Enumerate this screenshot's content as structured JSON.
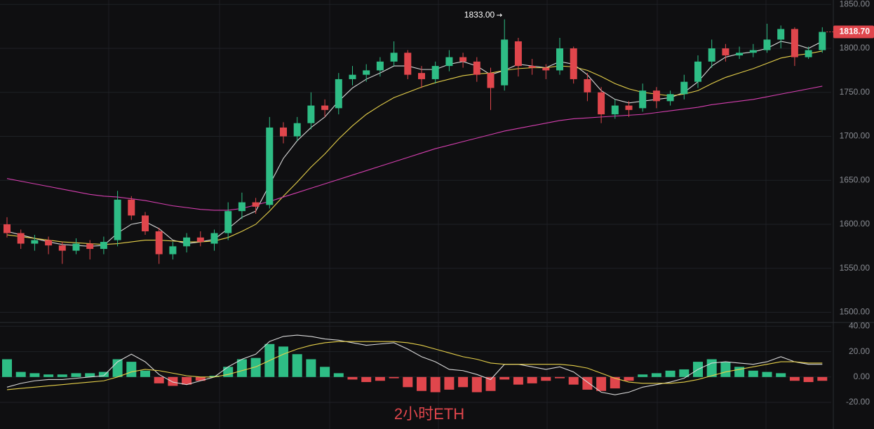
{
  "chart_data": [
    {
      "type": "candlestick",
      "title": "2小时ETH",
      "open": [
        1600,
        1590,
        1578,
        1582,
        1576,
        1570,
        1578,
        1572,
        1582,
        1628,
        1610,
        1592,
        1566,
        1575,
        1585,
        1578,
        1590,
        1615,
        1625,
        1622,
        1710,
        1700,
        1715,
        1735,
        1732,
        1765,
        1770,
        1775,
        1785,
        1795,
        1772,
        1765,
        1780,
        1790,
        1785,
        1772,
        1758,
        1808,
        1780,
        1778,
        1775,
        1800,
        1765,
        1750,
        1725,
        1735,
        1732,
        1752,
        1740,
        1748,
        1762,
        1785,
        1800,
        1792,
        1795,
        1798,
        1810,
        1822,
        1790,
        1798
      ],
      "high": [
        1608,
        1594,
        1588,
        1586,
        1580,
        1584,
        1582,
        1586,
        1638,
        1632,
        1614,
        1596,
        1580,
        1590,
        1592,
        1594,
        1625,
        1636,
        1630,
        1722,
        1716,
        1722,
        1750,
        1742,
        1772,
        1780,
        1782,
        1790,
        1808,
        1798,
        1780,
        1785,
        1798,
        1795,
        1790,
        1778,
        1833,
        1812,
        1788,
        1782,
        1812,
        1802,
        1772,
        1756,
        1742,
        1740,
        1760,
        1756,
        1752,
        1770,
        1792,
        1810,
        1805,
        1802,
        1805,
        1828,
        1826,
        1824,
        1802,
        1824
      ],
      "low": [
        1585,
        1572,
        1570,
        1566,
        1555,
        1566,
        1560,
        1566,
        1575,
        1605,
        1588,
        1555,
        1560,
        1568,
        1575,
        1570,
        1582,
        1606,
        1612,
        1618,
        1692,
        1695,
        1708,
        1722,
        1725,
        1758,
        1762,
        1768,
        1780,
        1765,
        1755,
        1760,
        1774,
        1778,
        1762,
        1730,
        1752,
        1768,
        1770,
        1765,
        1770,
        1760,
        1740,
        1715,
        1720,
        1722,
        1728,
        1732,
        1735,
        1742,
        1755,
        1778,
        1785,
        1788,
        1790,
        1795,
        1800,
        1780,
        1788,
        1795
      ],
      "close": [
        1590,
        1578,
        1582,
        1576,
        1570,
        1578,
        1572,
        1580,
        1628,
        1610,
        1592,
        1566,
        1575,
        1585,
        1580,
        1590,
        1615,
        1625,
        1620,
        1710,
        1700,
        1715,
        1735,
        1730,
        1765,
        1770,
        1775,
        1785,
        1795,
        1770,
        1765,
        1780,
        1790,
        1785,
        1770,
        1755,
        1810,
        1780,
        1778,
        1775,
        1800,
        1765,
        1750,
        1725,
        1735,
        1730,
        1752,
        1740,
        1748,
        1762,
        1785,
        1800,
        1792,
        1795,
        1798,
        1810,
        1822,
        1790,
        1798,
        1818.7
      ],
      "up_color": "#2ebd85",
      "down_color": "#e0464c",
      "moving_averages": [
        {
          "color": "#d9d9d9",
          "values": [
            1592,
            1588,
            1584,
            1580,
            1577,
            1576,
            1575,
            1576,
            1590,
            1600,
            1603,
            1595,
            1582,
            1578,
            1580,
            1583,
            1595,
            1608,
            1615,
            1645,
            1675,
            1695,
            1710,
            1722,
            1740,
            1755,
            1765,
            1772,
            1780,
            1780,
            1776,
            1776,
            1782,
            1785,
            1780,
            1770,
            1775,
            1782,
            1780,
            1778,
            1785,
            1782,
            1770,
            1752,
            1742,
            1738,
            1740,
            1742,
            1744,
            1750,
            1762,
            1780,
            1790,
            1794,
            1796,
            1800,
            1808,
            1805,
            1800,
            1808
          ]
        },
        {
          "color": "#e6d04a",
          "values": [
            1588,
            1586,
            1584,
            1582,
            1580,
            1579,
            1578,
            1577,
            1578,
            1580,
            1582,
            1582,
            1581,
            1580,
            1580,
            1581,
            1585,
            1592,
            1600,
            1615,
            1632,
            1648,
            1665,
            1680,
            1697,
            1712,
            1725,
            1735,
            1744,
            1750,
            1756,
            1761,
            1765,
            1769,
            1771,
            1772,
            1775,
            1777,
            1778,
            1778,
            1780,
            1779,
            1775,
            1768,
            1760,
            1754,
            1750,
            1748,
            1746,
            1748,
            1752,
            1760,
            1767,
            1772,
            1777,
            1783,
            1789,
            1792,
            1794,
            1797
          ]
        },
        {
          "color": "#d63fb0",
          "values": [
            1652,
            1649,
            1646,
            1643,
            1640,
            1637,
            1634,
            1632,
            1631,
            1629,
            1627,
            1624,
            1621,
            1619,
            1617,
            1616,
            1616,
            1618,
            1622,
            1626,
            1631,
            1636,
            1641,
            1646,
            1651,
            1656,
            1661,
            1666,
            1671,
            1676,
            1681,
            1686,
            1690,
            1694,
            1698,
            1702,
            1706,
            1709,
            1712,
            1715,
            1718,
            1720,
            1721,
            1722,
            1723,
            1724,
            1725,
            1727,
            1729,
            1731,
            1733,
            1736,
            1738,
            1740,
            1742,
            1745,
            1748,
            1751,
            1754,
            1757
          ]
        }
      ],
      "ylim": [
        1490,
        1855
      ],
      "yticks": [
        {
          "value": 1500,
          "label": "1500.00"
        },
        {
          "value": 1550,
          "label": "1550.00"
        },
        {
          "value": 1600,
          "label": "1600.00"
        },
        {
          "value": 1650,
          "label": "1650.00"
        },
        {
          "value": 1700,
          "label": "1700.00"
        },
        {
          "value": 1750,
          "label": "1750.00"
        },
        {
          "value": 1800,
          "label": "1800.00"
        },
        {
          "value": 1850,
          "label": "1850.00"
        }
      ],
      "grid": true,
      "high_annotation": {
        "value": 1833,
        "label": "1833.00"
      },
      "last_price": {
        "value": 1818.7,
        "label": "1818.70"
      }
    },
    {
      "type": "macd",
      "histogram": [
        14,
        4,
        3,
        2,
        2,
        3,
        3,
        4,
        14,
        12,
        5,
        -5,
        -7,
        -6,
        -3,
        1,
        8,
        14,
        15,
        26,
        24,
        18,
        14,
        8,
        3,
        -2,
        -4,
        -3,
        -1,
        -8,
        -11,
        -12,
        -10,
        -8,
        -12,
        -11,
        -2,
        -6,
        -5,
        -3,
        -1,
        -6,
        -10,
        -11,
        -9,
        -3,
        2,
        3,
        5,
        6,
        12,
        14,
        12,
        8,
        5,
        4,
        3,
        -3,
        -4,
        -3
      ],
      "positive_color": "#2ebd85",
      "negative_color": "#e0464c",
      "series": [
        {
          "color": "#d9d9d9",
          "values": [
            -8,
            -5,
            -3,
            -2,
            -2,
            -1,
            0,
            1,
            12,
            18,
            12,
            2,
            -4,
            -6,
            -3,
            0,
            8,
            14,
            18,
            28,
            32,
            33,
            32,
            30,
            29,
            27,
            25,
            26,
            27,
            22,
            16,
            12,
            6,
            5,
            2,
            -2,
            10,
            10,
            8,
            6,
            8,
            4,
            -4,
            -12,
            -14,
            -12,
            -8,
            -6,
            -4,
            -1,
            6,
            11,
            12,
            11,
            10,
            12,
            16,
            12,
            10,
            10
          ]
        },
        {
          "color": "#e6d04a",
          "values": [
            -10,
            -9,
            -8,
            -7,
            -6,
            -5,
            -4,
            -3,
            0,
            4,
            6,
            5,
            3,
            1,
            0,
            0,
            2,
            5,
            8,
            13,
            18,
            22,
            25,
            27,
            28,
            28,
            28,
            28,
            28,
            27,
            25,
            22,
            19,
            16,
            14,
            11,
            10,
            10,
            10,
            10,
            10,
            9,
            7,
            3,
            -1,
            -4,
            -5,
            -5,
            -5,
            -4,
            -2,
            1,
            4,
            6,
            8,
            10,
            12,
            12,
            11,
            11
          ]
        }
      ],
      "ylim": [
        -41,
        43
      ],
      "yticks": [
        {
          "value": 40,
          "label": "40.00"
        },
        {
          "value": 20,
          "label": "20.00"
        },
        {
          "value": 0,
          "label": "0.00"
        },
        {
          "value": -20,
          "label": "-20.00"
        }
      ],
      "grid": true
    }
  ]
}
